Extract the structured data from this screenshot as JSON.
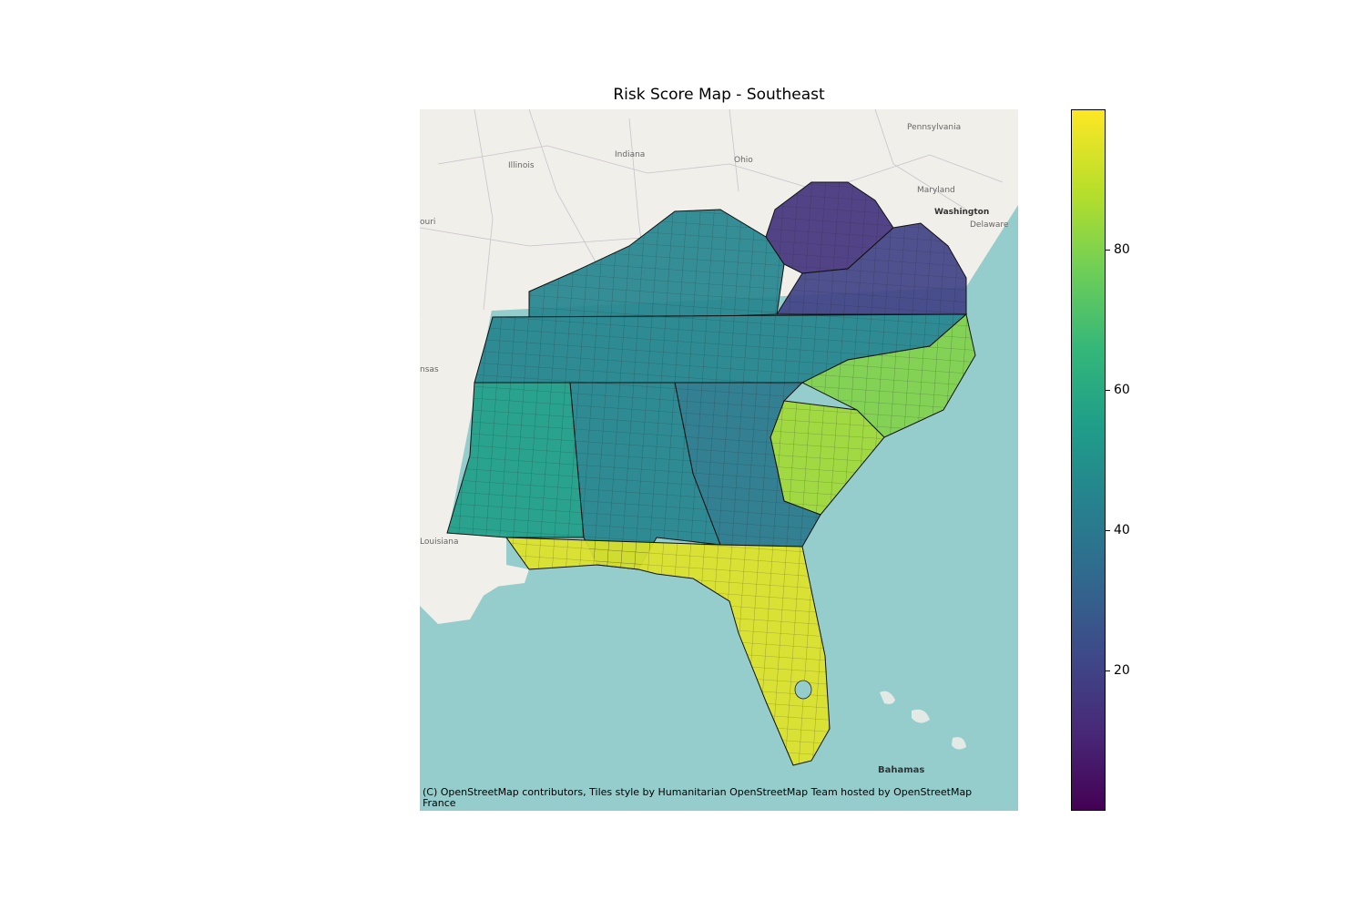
{
  "chart_data": {
    "type": "choropleth",
    "title": "Risk Score Map - Southeast",
    "colorbar": {
      "colormap": "viridis",
      "ticks": [
        "20",
        "40",
        "60",
        "80"
      ],
      "range": [
        0,
        100
      ]
    },
    "basemap_labels": [
      "Pennsylvania",
      "Indiana",
      "Ohio",
      "Illinois",
      "Maryland",
      "Washington",
      "Delaware",
      "ouri",
      "nsas",
      "Louisiana",
      "Bahamas"
    ],
    "attribution": "(C) OpenStreetMap contributors, Tiles style by Humanitarian OpenStreetMap Team hosted by OpenStreetMap France",
    "regions": [
      {
        "name": "Kentucky",
        "value": 45
      },
      {
        "name": "West Virginia",
        "value": 15
      },
      {
        "name": "Virginia",
        "value": 20
      },
      {
        "name": "Tennessee",
        "value": 45
      },
      {
        "name": "North Carolina",
        "value": 80
      },
      {
        "name": "South Carolina",
        "value": 85
      },
      {
        "name": "Georgia",
        "value": 40
      },
      {
        "name": "Alabama",
        "value": 45
      },
      {
        "name": "Mississippi",
        "value": 55
      },
      {
        "name": "Florida",
        "value": 95
      }
    ],
    "colors": {
      "ocean": "#94cdcc",
      "land": "#f1efe9"
    }
  }
}
